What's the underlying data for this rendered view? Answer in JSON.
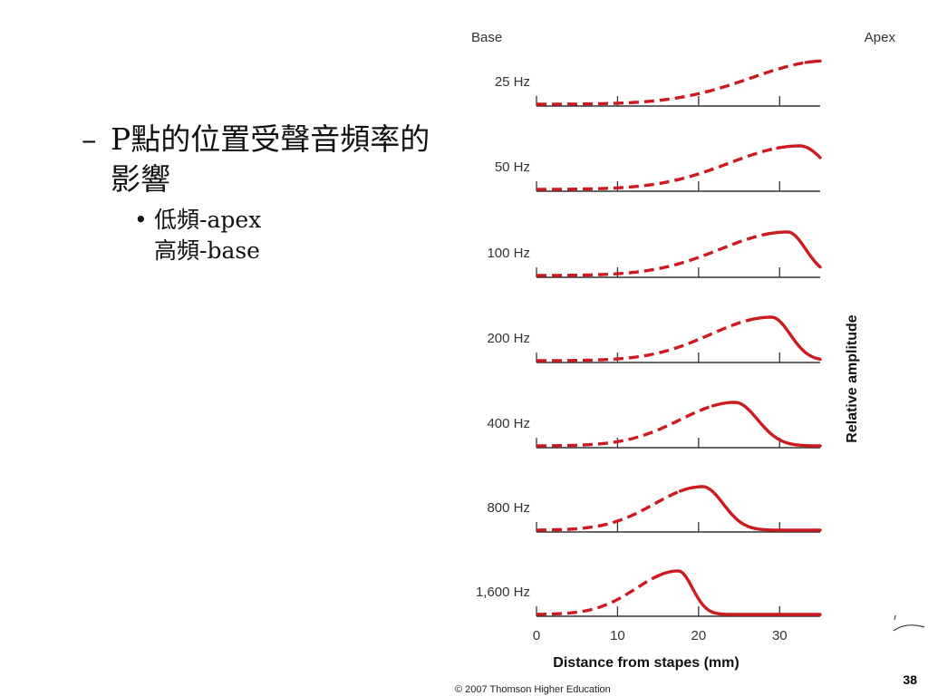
{
  "slide": {
    "heading_marker": "–",
    "heading": "P點的位置受聲音頻率的影響",
    "bullet_marker": "•",
    "bullet_lines": [
      "低頻-apex",
      "高頻-base"
    ],
    "page_number": "38"
  },
  "chart_data": {
    "type": "line",
    "title": "",
    "xlabel": "Distance from stapes (mm)",
    "ylabel": "Relative amplitude",
    "xlim": [
      0,
      35
    ],
    "ylim": [
      0,
      1
    ],
    "x_ticks": [
      0,
      10,
      20,
      30
    ],
    "x_tick_labels": [
      "0",
      "10",
      "20",
      "30"
    ],
    "base_label": "Base",
    "apex_label": "Apex",
    "copyright": "© 2007 Thomson Higher Education",
    "series": [
      {
        "name": "25 Hz",
        "peak_mm": 36,
        "rising_width": 12,
        "falling_width": 6
      },
      {
        "name": "50 Hz",
        "peak_mm": 32.5,
        "rising_width": 11,
        "falling_width": 4
      },
      {
        "name": "100 Hz",
        "peak_mm": 31,
        "rising_width": 10.5,
        "falling_width": 2.8
      },
      {
        "name": "200 Hz",
        "peak_mm": 29,
        "rising_width": 9.5,
        "falling_width": 2.9
      },
      {
        "name": "400 Hz",
        "peak_mm": 24.5,
        "rising_width": 8.5,
        "falling_width": 3.5
      },
      {
        "name": "800 Hz",
        "peak_mm": 20.5,
        "rising_width": 7.5,
        "falling_width": 3.2
      },
      {
        "name": "1,600 Hz",
        "peak_mm": 17.5,
        "rising_width": 6.5,
        "falling_width": 2.2
      }
    ],
    "colors": {
      "curve": "#cc1a1f",
      "axis": "#333333"
    }
  }
}
